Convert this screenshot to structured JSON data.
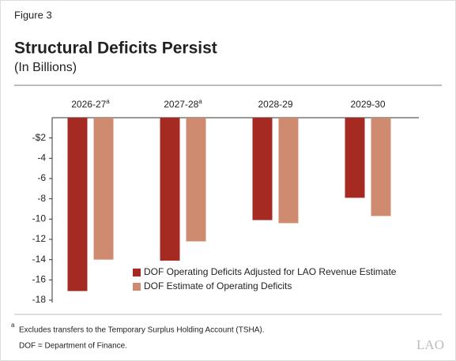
{
  "figure_label": "Figure 3",
  "chart_data": {
    "type": "bar",
    "title": "Structural Deficits Persist",
    "subtitle": "(In Billions)",
    "categories": [
      "2026-27",
      "2027-28",
      "2028-29",
      "2029-30"
    ],
    "category_superscripts": [
      "a",
      "a",
      null,
      null
    ],
    "series": [
      {
        "name": "DOF Operating Deficits Adjusted for LAO Revenue Estimate",
        "color": "#a52a22",
        "values": [
          -17.1,
          -14.1,
          -10.1,
          -7.9
        ]
      },
      {
        "name": "DOF Estimate of Operating Deficits",
        "color": "#cf8b70",
        "values": [
          -14.0,
          -12.2,
          -10.4,
          -9.7
        ]
      }
    ],
    "ylim": [
      -18,
      0
    ],
    "yticks": [
      {
        "value": -2,
        "label": "-$2"
      },
      -4,
      -6,
      -8,
      -10,
      -12,
      -14,
      -16,
      -18
    ],
    "legend": "bottom-right"
  },
  "footnotes": {
    "marker": "a",
    "note": "Excludes transfers to the Temporary Surplus Holding Account (TSHA).",
    "definition": "DOF = Department of Finance."
  },
  "logo": "LAO"
}
